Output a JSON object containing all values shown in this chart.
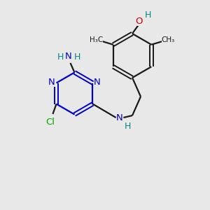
{
  "background_color": "#e8e8e8",
  "bond_color": "#1a1a1a",
  "N_color": "#0000cc",
  "O_color": "#cc0000",
  "Cl_color": "#00aa00",
  "H_color": "#008888",
  "figsize": [
    3.0,
    3.0
  ],
  "dpi": 100,
  "xlim": [
    0,
    10
  ],
  "ylim": [
    0,
    10
  ]
}
